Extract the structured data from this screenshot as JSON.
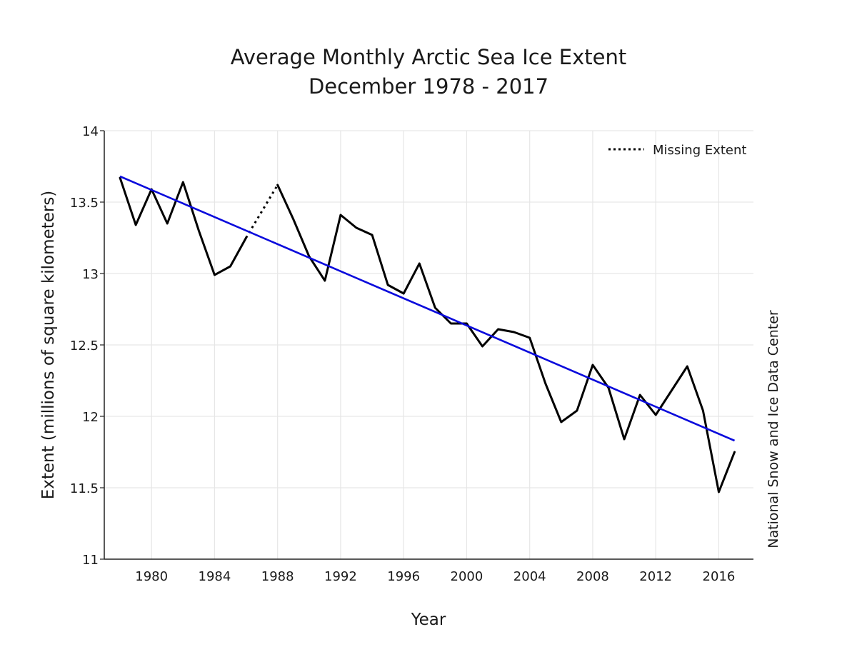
{
  "chart_data": {
    "type": "line",
    "title": "Average Monthly Arctic Sea Ice Extent",
    "subtitle": "December 1978 - 2017",
    "xlabel": "Year",
    "ylabel": "Extent (millions of square kilometers)",
    "source_credit": "National Snow and Ice Data Center",
    "xlim": [
      1977,
      2018.2
    ],
    "ylim": [
      11,
      14
    ],
    "x_ticks": [
      "1980",
      "1984",
      "1988",
      "1992",
      "1996",
      "2000",
      "2004",
      "2008",
      "2012",
      "2016"
    ],
    "y_ticks": [
      "11",
      "11.5",
      "12",
      "12.5",
      "13",
      "13.5",
      "14"
    ],
    "grid": true,
    "legend": {
      "position": "top-right",
      "entries": [
        {
          "label": "Missing Extent",
          "style": "dotted",
          "color": "#000000"
        }
      ]
    },
    "series": [
      {
        "style": "solid",
        "color": "#000000",
        "x": [
          1978,
          1979,
          1980,
          1981,
          1982,
          1983,
          1984,
          1985,
          1986,
          1988,
          1989,
          1990,
          1991,
          1992,
          1993,
          1994,
          1995,
          1996,
          1997,
          1998,
          1999,
          2000,
          2001,
          2002,
          2003,
          2004,
          2005,
          2006,
          2007,
          2008,
          2009,
          2010,
          2011,
          2012,
          2013,
          2014,
          2015,
          2016,
          2017
        ],
        "y": [
          13.67,
          13.34,
          13.59,
          13.35,
          13.64,
          13.3,
          12.99,
          13.05,
          13.25,
          13.62,
          13.38,
          13.12,
          12.95,
          13.41,
          13.32,
          13.27,
          12.92,
          12.86,
          13.07,
          12.76,
          12.65,
          12.65,
          12.49,
          12.61,
          12.59,
          12.55,
          12.23,
          11.96,
          12.04,
          12.36,
          12.2,
          11.84,
          12.15,
          12.01,
          12.18,
          12.35,
          12.04,
          11.47,
          11.75
        ]
      },
      {
        "name": "Missing Extent",
        "style": "dotted",
        "color": "#000000",
        "x": [
          1986,
          1988
        ],
        "y": [
          13.25,
          13.62
        ]
      },
      {
        "style": "solid",
        "color": "#0a0adc",
        "x": [
          1978,
          2017
        ],
        "y": [
          13.68,
          11.83
        ]
      }
    ]
  }
}
